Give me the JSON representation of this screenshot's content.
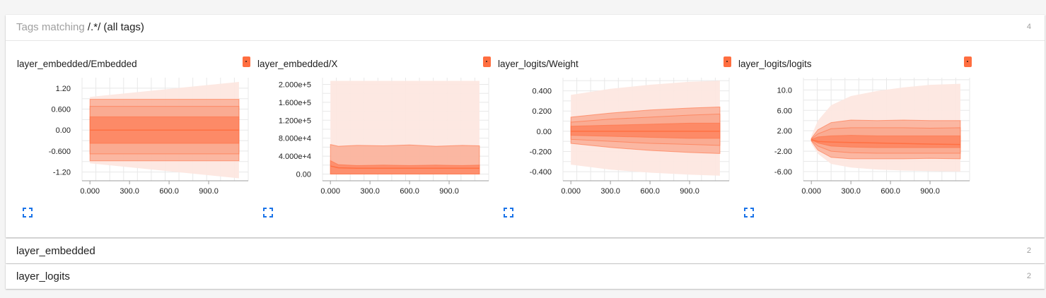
{
  "panels": [
    {
      "prefix": "Tags matching ",
      "regex": "/.*/",
      "suffix": " (all tags)",
      "count": "4"
    },
    {
      "label": "layer_embedded",
      "count": "2"
    },
    {
      "label": "layer_logits",
      "count": "2"
    }
  ],
  "colors": {
    "accent": "#ff7043",
    "band_light": "#fde7e0",
    "band_mid": "#f9a78c",
    "expand_icon": "#1a73e8"
  },
  "chart_data": [
    {
      "type": "area",
      "title": "layer_embedded/Embedded",
      "xlim": [
        -60,
        1200
      ],
      "ylim": [
        -1.45,
        1.5
      ],
      "x_ticks": [
        0,
        300,
        600,
        900
      ],
      "x_tick_labels": [
        "0.000",
        "300.0",
        "600.0",
        "900.0"
      ],
      "y_ticks": [
        1.2,
        0.6,
        0,
        -0.6,
        -1.2
      ],
      "y_tick_labels": [
        "1.20",
        "0.600",
        "0.00",
        "-0.600",
        "-1.20"
      ],
      "x": [
        0,
        1130
      ],
      "bands": [
        {
          "lo": [
            -0.95,
            -1.38
          ],
          "hi": [
            0.95,
            1.38
          ],
          "level": "outer"
        },
        {
          "lo": [
            -0.88,
            -0.88
          ],
          "hi": [
            0.88,
            0.88
          ],
          "level": "mid"
        },
        {
          "lo": [
            -0.68,
            -0.68
          ],
          "hi": [
            0.68,
            0.68
          ],
          "level": "mid"
        },
        {
          "lo": [
            -0.38,
            -0.38
          ],
          "hi": [
            0.38,
            0.38
          ],
          "level": "inner"
        }
      ],
      "median": [
        0,
        0
      ]
    },
    {
      "type": "area",
      "title": "layer_embedded/X",
      "xlim": [
        -60,
        1200
      ],
      "ylim": [
        -15000,
        215000
      ],
      "x_ticks": [
        0,
        300,
        600,
        900
      ],
      "x_tick_labels": [
        "0.000",
        "300.0",
        "600.0",
        "900.0"
      ],
      "y_ticks": [
        200000,
        160000,
        120000,
        80000,
        40000,
        0
      ],
      "y_tick_labels": [
        "2.000e+5",
        "1.600e+5",
        "1.200e+5",
        "8.000e+4",
        "4.000e+4",
        "0.00"
      ],
      "x": [
        0,
        60,
        200,
        400,
        600,
        800,
        1000,
        1130
      ],
      "bands": [
        {
          "lo": [
            0,
            0,
            0,
            0,
            0,
            0,
            0,
            0
          ],
          "hi": [
            208000,
            208000,
            208000,
            208000,
            208000,
            208000,
            208000,
            208000
          ],
          "level": "outer"
        },
        {
          "lo": [
            0,
            0,
            0,
            0,
            0,
            0,
            0,
            0
          ],
          "hi": [
            66000,
            62000,
            64000,
            63000,
            65000,
            62000,
            64000,
            63000
          ],
          "level": "mid"
        },
        {
          "lo": [
            0,
            0,
            0,
            0,
            0,
            0,
            0,
            0
          ],
          "hi": [
            30000,
            21000,
            19000,
            20000,
            19000,
            20000,
            19000,
            20000
          ],
          "level": "inner"
        }
      ],
      "median": [
        18000,
        14000,
        13000,
        13000,
        13000,
        13000,
        13000,
        13000
      ]
    },
    {
      "type": "area",
      "title": "layer_logits/Weight",
      "xlim": [
        -60,
        1200
      ],
      "ylim": [
        -0.49,
        0.53
      ],
      "x_ticks": [
        0,
        300,
        600,
        900
      ],
      "x_tick_labels": [
        "0.000",
        "300.0",
        "600.0",
        "900.0"
      ],
      "y_ticks": [
        0.4,
        0.2,
        0,
        -0.2,
        -0.4
      ],
      "y_tick_labels": [
        "0.400",
        "0.200",
        "0.00",
        "-0.200",
        "-0.400"
      ],
      "x": [
        0,
        300,
        600,
        900,
        1130
      ],
      "bands": [
        {
          "lo": [
            -0.33,
            -0.38,
            -0.41,
            -0.43,
            -0.44
          ],
          "hi": [
            0.36,
            0.42,
            0.46,
            0.49,
            0.5
          ],
          "level": "outer"
        },
        {
          "lo": [
            -0.12,
            -0.16,
            -0.19,
            -0.21,
            -0.22
          ],
          "hi": [
            0.14,
            0.18,
            0.21,
            0.23,
            0.24
          ],
          "level": "mid"
        },
        {
          "lo": [
            -0.08,
            -0.1,
            -0.12,
            -0.13,
            -0.14
          ],
          "hi": [
            0.09,
            0.12,
            0.14,
            0.16,
            0.17
          ],
          "level": "mid"
        },
        {
          "lo": [
            -0.04,
            -0.05,
            -0.06,
            -0.07,
            -0.07
          ],
          "hi": [
            0.05,
            0.06,
            0.07,
            0.08,
            0.08
          ],
          "level": "inner"
        }
      ],
      "median": [
        0,
        0,
        0,
        0,
        0
      ]
    },
    {
      "type": "area",
      "title": "layer_logits/logits",
      "xlim": [
        -60,
        1200
      ],
      "ylim": [
        -7.8,
        12.4
      ],
      "x_ticks": [
        0,
        300,
        600,
        900
      ],
      "x_tick_labels": [
        "0.000",
        "300.0",
        "600.0",
        "900.0"
      ],
      "y_ticks": [
        10,
        6,
        2,
        -2,
        -6
      ],
      "y_tick_labels": [
        "10.0",
        "6.00",
        "2.00",
        "-2.00",
        "-6.00"
      ],
      "x": [
        0,
        50,
        150,
        300,
        500,
        700,
        900,
        1130
      ],
      "bands": [
        {
          "lo": [
            -0.5,
            -2.5,
            -4.5,
            -5.2,
            -5.6,
            -5.8,
            -5.9,
            -6.0
          ],
          "hi": [
            1,
            4,
            7,
            8.8,
            9.8,
            10.5,
            11,
            11.2
          ],
          "level": "outer"
        },
        {
          "lo": [
            0,
            -1.8,
            -3.2,
            -3.5,
            -3.5,
            -3.5,
            -3.4,
            -3.5
          ],
          "hi": [
            0.5,
            2.2,
            3.6,
            4.1,
            4.0,
            4.1,
            4.0,
            4.0
          ],
          "level": "mid"
        },
        {
          "lo": [
            0.1,
            -1.0,
            -2.0,
            -2.3,
            -2.4,
            -2.4,
            -2.4,
            -2.4
          ],
          "hi": [
            0.4,
            1.4,
            2.4,
            2.6,
            2.6,
            2.6,
            2.5,
            2.6
          ],
          "level": "mid"
        },
        {
          "lo": [
            0.2,
            -0.4,
            -1.0,
            -1.2,
            -1.3,
            -1.3,
            -1.3,
            -1.3
          ],
          "hi": [
            0.3,
            0.8,
            1.0,
            1.1,
            1.0,
            1.0,
            1.0,
            1.0
          ],
          "level": "inner"
        }
      ],
      "median": [
        0.25,
        -0.1,
        -0.2,
        -0.3,
        -0.4,
        -0.5,
        -0.6,
        -0.7
      ]
    }
  ]
}
